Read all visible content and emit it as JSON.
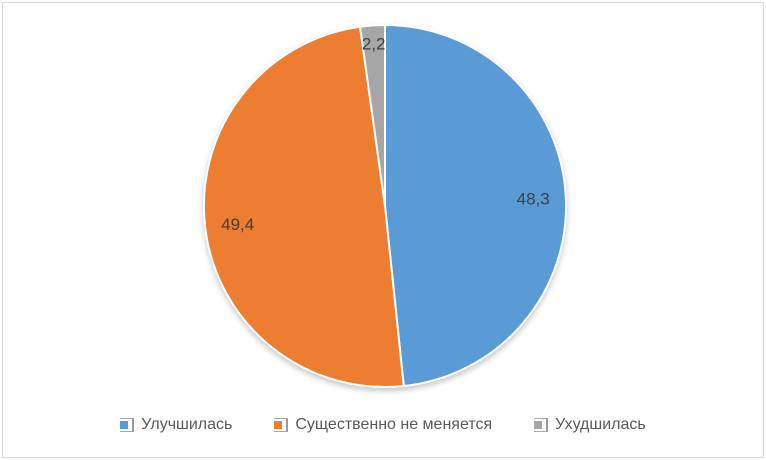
{
  "frame": {
    "border_color": "#d9d9d9",
    "background": "#ffffff"
  },
  "chart_data": {
    "type": "pie",
    "title": "",
    "start_angle_deg": 0,
    "direction": "clockwise",
    "slices": [
      {
        "label": "Улучшилась",
        "value": 48.3,
        "display_value": "48,3",
        "color": "#5B9BD5",
        "label_r": 0.82
      },
      {
        "label": "Существенно не меняется",
        "value": 49.4,
        "display_value": "49,4",
        "color": "#ED7D31",
        "label_r": 0.82
      },
      {
        "label": "Ухудшилась",
        "value": 2.2,
        "display_value": "2,2",
        "color": "#A6A6A6",
        "label_r": 0.9
      }
    ],
    "slice_border_color": "#ffffff",
    "data_label_color": "#404040",
    "legend": {
      "position": "bottom",
      "entries": [
        "Улучшилась",
        "Существенно не меняется",
        "Ухудшилась"
      ],
      "text_color": "#595959",
      "marker_outline_color": "#a8a8a8"
    }
  }
}
